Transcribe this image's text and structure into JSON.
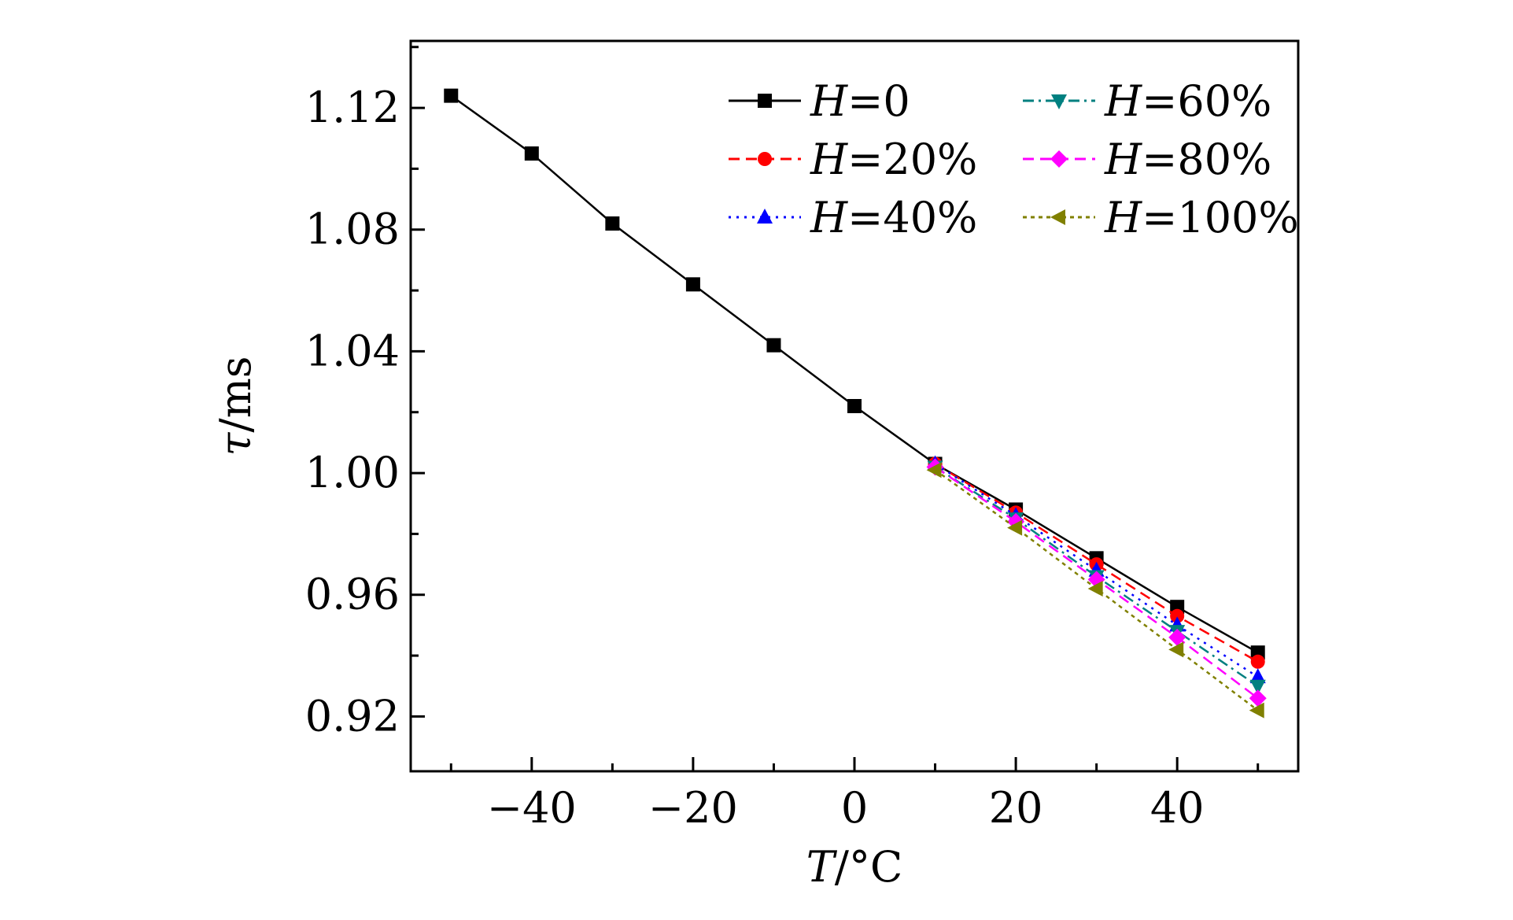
{
  "chart_data": {
    "type": "line",
    "xlabel_italic": "T",
    "xlabel_rest": "/°C",
    "ylabel_italic": "τ",
    "ylabel_rest": "/ms",
    "xlim": [
      -55,
      55
    ],
    "ylim": [
      0.902,
      1.142
    ],
    "xticks": [
      -40,
      -20,
      0,
      20,
      40
    ],
    "xtick_labels": [
      "−40",
      "−20",
      "0",
      "20",
      "40"
    ],
    "yticks": [
      0.92,
      0.96,
      1.0,
      1.04,
      1.08,
      1.12
    ],
    "ytick_labels": [
      "0.92",
      "0.96",
      "1.00",
      "1.04",
      "1.08",
      "1.12"
    ],
    "legend_position": "top-right",
    "series": [
      {
        "name_italic": "H",
        "name_rest": "=0",
        "color": "#000000",
        "marker": "square",
        "dash": "solid",
        "x": [
          -50,
          -40,
          -30,
          -20,
          -10,
          0,
          10,
          20,
          30,
          40,
          50
        ],
        "y": [
          1.124,
          1.105,
          1.082,
          1.062,
          1.042,
          1.022,
          1.003,
          0.988,
          0.972,
          0.956,
          0.941
        ]
      },
      {
        "name_italic": "H",
        "name_rest": "=20%",
        "color": "#ff0000",
        "marker": "circle",
        "dash": "dash",
        "x": [
          10,
          20,
          30,
          40,
          50
        ],
        "y": [
          1.003,
          0.987,
          0.97,
          0.953,
          0.938
        ]
      },
      {
        "name_italic": "H",
        "name_rest": "=40%",
        "color": "#0000ff",
        "marker": "triangle-up",
        "dash": "dot",
        "x": [
          10,
          20,
          30,
          40,
          50
        ],
        "y": [
          1.003,
          0.986,
          0.968,
          0.95,
          0.933
        ]
      },
      {
        "name_italic": "H",
        "name_rest": "=60%",
        "color": "#008080",
        "marker": "triangle-down",
        "dash": "dashdot",
        "x": [
          10,
          20,
          30,
          40,
          50
        ],
        "y": [
          1.002,
          0.985,
          0.966,
          0.948,
          0.93
        ]
      },
      {
        "name_italic": "H",
        "name_rest": "=80%",
        "color": "#ff00ff",
        "marker": "diamond",
        "dash": "dash",
        "x": [
          10,
          20,
          30,
          40,
          50
        ],
        "y": [
          1.002,
          0.984,
          0.965,
          0.946,
          0.926
        ]
      },
      {
        "name_italic": "H",
        "name_rest": "=100%",
        "color": "#808000",
        "marker": "triangle-left",
        "dash": "shortdot",
        "x": [
          10,
          20,
          30,
          40,
          50
        ],
        "y": [
          1.001,
          0.982,
          0.962,
          0.942,
          0.922
        ]
      }
    ]
  }
}
